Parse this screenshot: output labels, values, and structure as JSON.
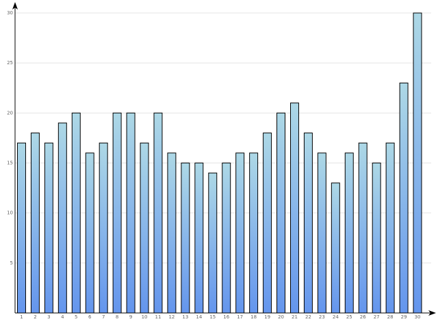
{
  "chart_data": {
    "type": "bar",
    "categories": [
      "1",
      "2",
      "3",
      "4",
      "5",
      "6",
      "7",
      "8",
      "9",
      "10",
      "11",
      "12",
      "13",
      "14",
      "15",
      "16",
      "17",
      "18",
      "19",
      "20",
      "21",
      "22",
      "23",
      "24",
      "25",
      "26",
      "27",
      "28",
      "29",
      "30"
    ],
    "values": [
      17,
      18,
      17,
      19,
      20,
      16,
      17,
      20,
      20,
      17,
      20,
      16,
      15,
      15,
      14,
      15,
      16,
      16,
      18,
      20,
      21,
      18,
      16,
      13,
      16,
      17,
      15,
      17,
      23,
      30
    ],
    "colors": [
      "#add8e6",
      "#6495ed"
    ],
    "ylim": [
      0,
      30
    ],
    "yticks": [
      5,
      10,
      15,
      20,
      25,
      30
    ],
    "grid": true
  }
}
